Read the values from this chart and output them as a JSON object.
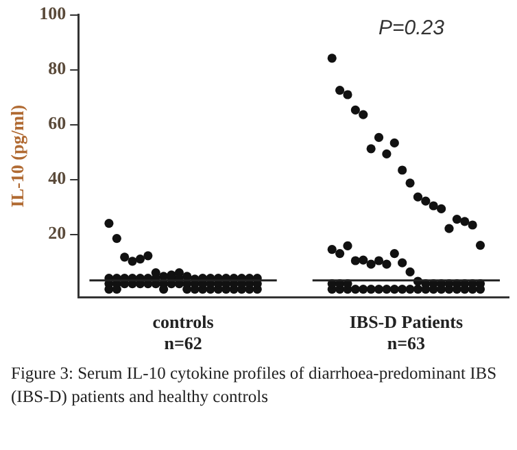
{
  "chart_data": {
    "type": "scatter",
    "ylabel": "IL-10 (pg/ml)",
    "categories": [
      "controls\nn=62",
      "IBS-D Patients\nn=63"
    ],
    "ylim": [
      -3,
      100
    ],
    "yticks": [
      20,
      40,
      60,
      80,
      100
    ],
    "grid": false,
    "legend": false,
    "marker": "circle",
    "series": [
      {
        "color": "#111111",
        "x": [
          "controls\nn=62",
          "controls\nn=62",
          "controls\nn=62",
          "controls\nn=62",
          "controls\nn=62",
          "controls\nn=62",
          "controls\nn=62",
          "controls\nn=62",
          "controls\nn=62",
          "controls\nn=62",
          "controls\nn=62",
          "controls\nn=62",
          "controls\nn=62",
          "controls\nn=62",
          "controls\nn=62",
          "controls\nn=62",
          "controls\nn=62",
          "controls\nn=62",
          "controls\nn=62",
          "controls\nn=62",
          "controls\nn=62",
          "controls\nn=62",
          "controls\nn=62",
          "controls\nn=62",
          "controls\nn=62",
          "controls\nn=62",
          "controls\nn=62",
          "controls\nn=62",
          "controls\nn=62",
          "controls\nn=62",
          "controls\nn=62",
          "controls\nn=62",
          "controls\nn=62",
          "controls\nn=62",
          "controls\nn=62",
          "controls\nn=62",
          "controls\nn=62",
          "controls\nn=62",
          "controls\nn=62",
          "controls\nn=62",
          "controls\nn=62",
          "controls\nn=62",
          "controls\nn=62",
          "controls\nn=62",
          "controls\nn=62",
          "controls\nn=62",
          "controls\nn=62",
          "controls\nn=62",
          "controls\nn=62",
          "controls\nn=62",
          "controls\nn=62",
          "controls\nn=62",
          "controls\nn=62",
          "controls\nn=62",
          "controls\nn=62",
          "controls\nn=62",
          "controls\nn=62",
          "controls\nn=62",
          "controls\nn=62",
          "controls\nn=62",
          "controls\nn=62",
          "controls\nn=62"
        ],
        "values": [
          24,
          18.5,
          11.7,
          10.2,
          11,
          12.2,
          6,
          4.7,
          5.2,
          6,
          4.7,
          3.7,
          0,
          0,
          0,
          0,
          0,
          0,
          0,
          0,
          2,
          2,
          2,
          2,
          2,
          2,
          2,
          2,
          2,
          2,
          2,
          2,
          2,
          2,
          2,
          2,
          2,
          2,
          2,
          2,
          4,
          4,
          4,
          4,
          4,
          4,
          4,
          0,
          4,
          4,
          0,
          0,
          4,
          4,
          4,
          4,
          4,
          4,
          4,
          4,
          0,
          0
        ]
      },
      {
        "color": "#111111",
        "x": [
          "IBS-D Patients\nn=63",
          "IBS-D Patients\nn=63",
          "IBS-D Patients\nn=63",
          "IBS-D Patients\nn=63",
          "IBS-D Patients\nn=63",
          "IBS-D Patients\nn=63",
          "IBS-D Patients\nn=63",
          "IBS-D Patients\nn=63",
          "IBS-D Patients\nn=63",
          "IBS-D Patients\nn=63",
          "IBS-D Patients\nn=63",
          "IBS-D Patients\nn=63",
          "IBS-D Patients\nn=63",
          "IBS-D Patients\nn=63",
          "IBS-D Patients\nn=63",
          "IBS-D Patients\nn=63",
          "IBS-D Patients\nn=63",
          "IBS-D Patients\nn=63",
          "IBS-D Patients\nn=63",
          "IBS-D Patients\nn=63",
          "IBS-D Patients\nn=63",
          "IBS-D Patients\nn=63",
          "IBS-D Patients\nn=63",
          "IBS-D Patients\nn=63",
          "IBS-D Patients\nn=63",
          "IBS-D Patients\nn=63",
          "IBS-D Patients\nn=63",
          "IBS-D Patients\nn=63",
          "IBS-D Patients\nn=63",
          "IBS-D Patients\nn=63",
          "IBS-D Patients\nn=63",
          "IBS-D Patients\nn=63",
          "IBS-D Patients\nn=63",
          "IBS-D Patients\nn=63",
          "IBS-D Patients\nn=63",
          "IBS-D Patients\nn=63",
          "IBS-D Patients\nn=63",
          "IBS-D Patients\nn=63",
          "IBS-D Patients\nn=63",
          "IBS-D Patients\nn=63",
          "IBS-D Patients\nn=63",
          "IBS-D Patients\nn=63",
          "IBS-D Patients\nn=63",
          "IBS-D Patients\nn=63",
          "IBS-D Patients\nn=63",
          "IBS-D Patients\nn=63",
          "IBS-D Patients\nn=63",
          "IBS-D Patients\nn=63",
          "IBS-D Patients\nn=63",
          "IBS-D Patients\nn=63",
          "IBS-D Patients\nn=63",
          "IBS-D Patients\nn=63",
          "IBS-D Patients\nn=63",
          "IBS-D Patients\nn=63",
          "IBS-D Patients\nn=63",
          "IBS-D Patients\nn=63",
          "IBS-D Patients\nn=63",
          "IBS-D Patients\nn=63",
          "IBS-D Patients\nn=63",
          "IBS-D Patients\nn=63",
          "IBS-D Patients\nn=63",
          "IBS-D Patients\nn=63",
          "IBS-D Patients\nn=63"
        ],
        "values": [
          84.2,
          72.5,
          70.9,
          65.3,
          63.6,
          51.2,
          55.3,
          49.3,
          53.3,
          43.4,
          38.7,
          33.6,
          32.1,
          30.4,
          29.3,
          22.1,
          25.5,
          24.7,
          23.4,
          16,
          14.5,
          13,
          15.8,
          10.4,
          10.6,
          9.1,
          10.4,
          9.1,
          13,
          9.6,
          6.3,
          2.9,
          2,
          2,
          2,
          2,
          2,
          2,
          2,
          2,
          0,
          0,
          0,
          0,
          0,
          0,
          0,
          0,
          0,
          0,
          0,
          0,
          0,
          0,
          0,
          0,
          0,
          0,
          0,
          0,
          2,
          2,
          2
        ]
      }
    ],
    "ref_lines": [
      {
        "axis": "y",
        "value": 3.2,
        "color": "#222222"
      }
    ],
    "annotations": [
      "P=0.23",
      "Figure 3:    Serum IL-10 cytokine profiles of diarrhoea-predominant IBS (IBS-D) patients and healthy controls"
    ]
  }
}
